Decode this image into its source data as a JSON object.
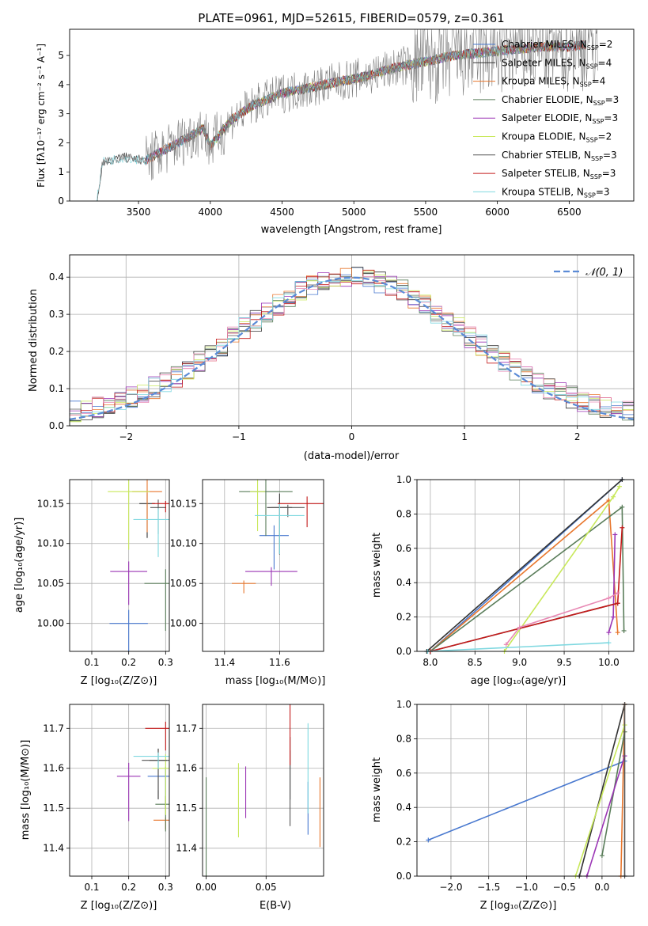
{
  "figure_title": "PLATE=0961, MJD=52615, FIBERID=0579, z=0.361",
  "models": [
    {
      "label": "Chabrier MILES",
      "nssp": "2",
      "color": "#4878cf"
    },
    {
      "label": "Salpeter MILES",
      "nssp": "4",
      "color": "#333333"
    },
    {
      "label": "Kroupa MILES",
      "nssp": "4",
      "color": "#e8772e"
    },
    {
      "label": "Chabrier ELODIE",
      "nssp": "3",
      "color": "#5a7d5a"
    },
    {
      "label": "Salpeter ELODIE",
      "nssp": "3",
      "color": "#9b35b5"
    },
    {
      "label": "Kroupa ELODIE",
      "nssp": "2",
      "color": "#c8e85a"
    },
    {
      "label": "Chabrier STELIB",
      "nssp": "3",
      "color": "#555555"
    },
    {
      "label": "Salpeter STELIB",
      "nssp": "3",
      "color": "#c41a1a"
    },
    {
      "label": "Kroupa STELIB",
      "nssp": "3",
      "color": "#7fd8e0"
    }
  ],
  "panels": {
    "spectrum": {
      "xlabel": "wavelength [Angstrom, rest frame]",
      "ylabel": "Flux [fλ10⁻¹⁷ erg cm⁻² s⁻¹ A⁻¹]",
      "xticks": [
        "3500",
        "4000",
        "4500",
        "5000",
        "5500",
        "6000",
        "6500"
      ],
      "yticks": [
        "0",
        "1",
        "2",
        "3",
        "4",
        "5"
      ]
    },
    "residuals": {
      "xlabel": "(data-model)/error",
      "ylabel": "Normed distribution",
      "legend": "𝒩(0, 1)",
      "xticks": [
        "−2",
        "−1",
        "0",
        "1",
        "2"
      ],
      "yticks": [
        "0.0",
        "0.1",
        "0.2",
        "0.3",
        "0.4"
      ]
    },
    "age_Z": {
      "xlabel": "Z [log₁₀(Z/Z⊙)]",
      "ylabel": "age  [log₁₀(age/yr)]",
      "xticks": [
        "0.1",
        "0.2",
        "0.3"
      ],
      "yticks": [
        "10.00",
        "10.05",
        "10.10",
        "10.15"
      ]
    },
    "age_mass": {
      "xlabel": "mass [log₁₀(M/M⊙)]",
      "xticks": [
        "11.4",
        "11.6"
      ],
      "yticks": [
        "10.00",
        "10.05",
        "10.10",
        "10.15"
      ]
    },
    "weight_age": {
      "xlabel": "age  [log₁₀(age/yr)]",
      "ylabel": "mass weight",
      "xticks": [
        "8.0",
        "8.5",
        "9.0",
        "9.5",
        "10.0"
      ],
      "yticks": [
        "0.0",
        "0.2",
        "0.4",
        "0.6",
        "0.8",
        "1.0"
      ]
    },
    "mass_Z": {
      "xlabel": "Z [log₁₀(Z/Z⊙)]",
      "ylabel": "mass [log₁₀(M/M⊙)]",
      "xticks": [
        "0.1",
        "0.2",
        "0.3"
      ],
      "yticks": [
        "11.4",
        "11.5",
        "11.6",
        "11.7"
      ]
    },
    "mass_ebv": {
      "xlabel": "E(B-V)",
      "xticks": [
        "0.00",
        "0.05"
      ],
      "yticks": [
        "11.4",
        "11.5",
        "11.6",
        "11.7"
      ]
    },
    "weight_Z": {
      "xlabel": "Z [log₁₀(Z/Z⊙)]",
      "ylabel": "mass weight",
      "xticks": [
        "−2.0",
        "−1.5",
        "−1.0",
        "−0.5",
        "0.0"
      ],
      "yticks": [
        "0.0",
        "0.2",
        "0.4",
        "0.6",
        "0.8",
        "1.0"
      ]
    }
  },
  "chart_data": [
    {
      "type": "line",
      "name": "spectrum",
      "xlim": [
        3020,
        6950
      ],
      "ylim": [
        0,
        5.9
      ],
      "grid": false,
      "legend_position": "right",
      "continuum_x": [
        3210,
        3250,
        3400,
        3550,
        3700,
        3850,
        3950,
        4000,
        4150,
        4300,
        4500,
        4700,
        4900,
        5100,
        5300,
        5500,
        5700,
        5900,
        6100,
        6300,
        6500,
        6700
      ],
      "continuum_y": [
        0,
        1.35,
        1.5,
        1.4,
        1.8,
        2.2,
        2.5,
        1.9,
        2.8,
        3.3,
        3.7,
        3.9,
        4.1,
        4.3,
        4.6,
        4.8,
        5.0,
        5.1,
        5.2,
        5.3,
        5.3,
        5.4
      ]
    },
    {
      "type": "line",
      "name": "residual_distribution",
      "xlim": [
        -2.5,
        2.5
      ],
      "ylim": [
        0,
        0.46
      ],
      "grid": true,
      "legend_position": "top-right",
      "gaussian": {
        "mean": 0,
        "sigma": 1
      }
    },
    {
      "type": "scatter",
      "name": "age_vs_Z",
      "xlim": [
        0.04,
        0.31
      ],
      "ylim": [
        9.965,
        10.18
      ],
      "points": [
        {
          "x": 0.2,
          "y": 10.0
        },
        {
          "x": 0.25,
          "y": 10.15
        },
        {
          "x": 0.25,
          "y": 10.165
        },
        {
          "x": 0.3,
          "y": 10.05
        },
        {
          "x": 0.2,
          "y": 10.065
        },
        {
          "x": 0.2,
          "y": 10.165
        },
        {
          "x": 0.28,
          "y": 10.145
        },
        {
          "x": 0.3,
          "y": 10.15
        },
        {
          "x": 0.28,
          "y": 10.13
        }
      ]
    },
    {
      "type": "scatter",
      "name": "age_vs_mass",
      "xlim": [
        11.32,
        11.76
      ],
      "ylim": [
        9.965,
        10.18
      ],
      "points": [
        {
          "x": 11.58,
          "y": 10.11
        },
        {
          "x": 11.6,
          "y": 10.145
        },
        {
          "x": 11.47,
          "y": 10.05
        },
        {
          "x": 11.55,
          "y": 10.165
        },
        {
          "x": 11.57,
          "y": 10.065
        },
        {
          "x": 11.52,
          "y": 10.165
        },
        {
          "x": 11.63,
          "y": 10.145
        },
        {
          "x": 11.7,
          "y": 10.15
        },
        {
          "x": 11.6,
          "y": 10.135
        }
      ]
    },
    {
      "type": "line",
      "name": "mass_weight_vs_age",
      "xlim": [
        7.85,
        10.28
      ],
      "ylim": [
        0,
        1
      ],
      "series": [
        {
          "x": [
            8.0,
            10.15
          ],
          "y": [
            0,
            1.0
          ]
        },
        {
          "x": [
            7.96,
            10.15
          ],
          "y": [
            0,
            1.0
          ]
        },
        {
          "x": [
            8.0,
            10.0,
            10.1
          ],
          "y": [
            0,
            0.88,
            0.11
          ]
        },
        {
          "x": [
            8.0,
            10.15,
            10.17
          ],
          "y": [
            0,
            0.84,
            0.12
          ]
        },
        {
          "x": [
            10.0,
            10.05,
            10.07
          ],
          "y": [
            0.11,
            0.2,
            0.68
          ]
        },
        {
          "x": [
            8.83,
            10.05,
            10.12
          ],
          "y": [
            0,
            0.9,
            0.96
          ]
        },
        {
          "x": [
            8.0,
            10.1
          ],
          "y": [
            0,
            0.28
          ]
        },
        {
          "x": [
            8.0,
            10.1,
            10.15
          ],
          "y": [
            0,
            0.28,
            0.72
          ]
        },
        {
          "x": [
            8.85,
            9.0,
            10.0,
            10.1
          ],
          "y": [
            0.04,
            0.14,
            0.31,
            0.34
          ]
        },
        {
          "x": [
            7.97,
            10.0
          ],
          "y": [
            0,
            0.05
          ]
        }
      ]
    },
    {
      "type": "scatter",
      "name": "mass_vs_Z",
      "xlim": [
        0.04,
        0.31
      ],
      "ylim": [
        11.33,
        11.76
      ],
      "points": [
        {
          "x": 0.3,
          "y": 11.58
        },
        {
          "x": 0.28,
          "y": 11.62
        },
        {
          "x": 0.3,
          "y": 11.47
        },
        {
          "x": 0.3,
          "y": 11.51
        },
        {
          "x": 0.2,
          "y": 11.58
        },
        {
          "x": 0.3,
          "y": 11.6
        },
        {
          "x": 0.28,
          "y": 11.62
        },
        {
          "x": 0.3,
          "y": 11.7
        },
        {
          "x": 0.28,
          "y": 11.63
        }
      ]
    },
    {
      "type": "scatter",
      "name": "mass_vs_ebv",
      "xlim": [
        -0.003,
        0.098
      ],
      "ylim": [
        11.33,
        11.76
      ],
      "points": [
        {
          "x": 0.085,
          "y": 11.5
        },
        {
          "x": 0.07,
          "y": 11.6
        },
        {
          "x": 0.095,
          "y": 11.49
        },
        {
          "x": 0.0,
          "y": 11.44
        },
        {
          "x": 0.033,
          "y": 11.54
        },
        {
          "x": 0.027,
          "y": 11.52
        },
        {
          "x": 0.07,
          "y": 11.55
        },
        {
          "x": 0.07,
          "y": 11.7
        },
        {
          "x": 0.085,
          "y": 11.6
        }
      ]
    },
    {
      "type": "line",
      "name": "mass_weight_vs_Z",
      "xlim": [
        -2.45,
        0.42
      ],
      "ylim": [
        0,
        1
      ],
      "series": [
        {
          "x": [
            -2.3,
            0.3
          ],
          "y": [
            0.21,
            0.67
          ]
        },
        {
          "x": [
            -0.3,
            0.3
          ],
          "y": [
            0,
            1.0
          ]
        },
        {
          "x": [
            0.25,
            0.3
          ],
          "y": [
            0,
            1.0
          ]
        },
        {
          "x": [
            0.0,
            0.3
          ],
          "y": [
            0.12,
            0.84
          ]
        },
        {
          "x": [
            -0.2,
            0.3
          ],
          "y": [
            0,
            0.7
          ]
        },
        {
          "x": [
            -0.35,
            0.3
          ],
          "y": [
            0,
            0.88
          ]
        },
        {
          "x": [
            0.3,
            0.3
          ],
          "y": [
            0,
            1.0
          ]
        }
      ]
    }
  ]
}
